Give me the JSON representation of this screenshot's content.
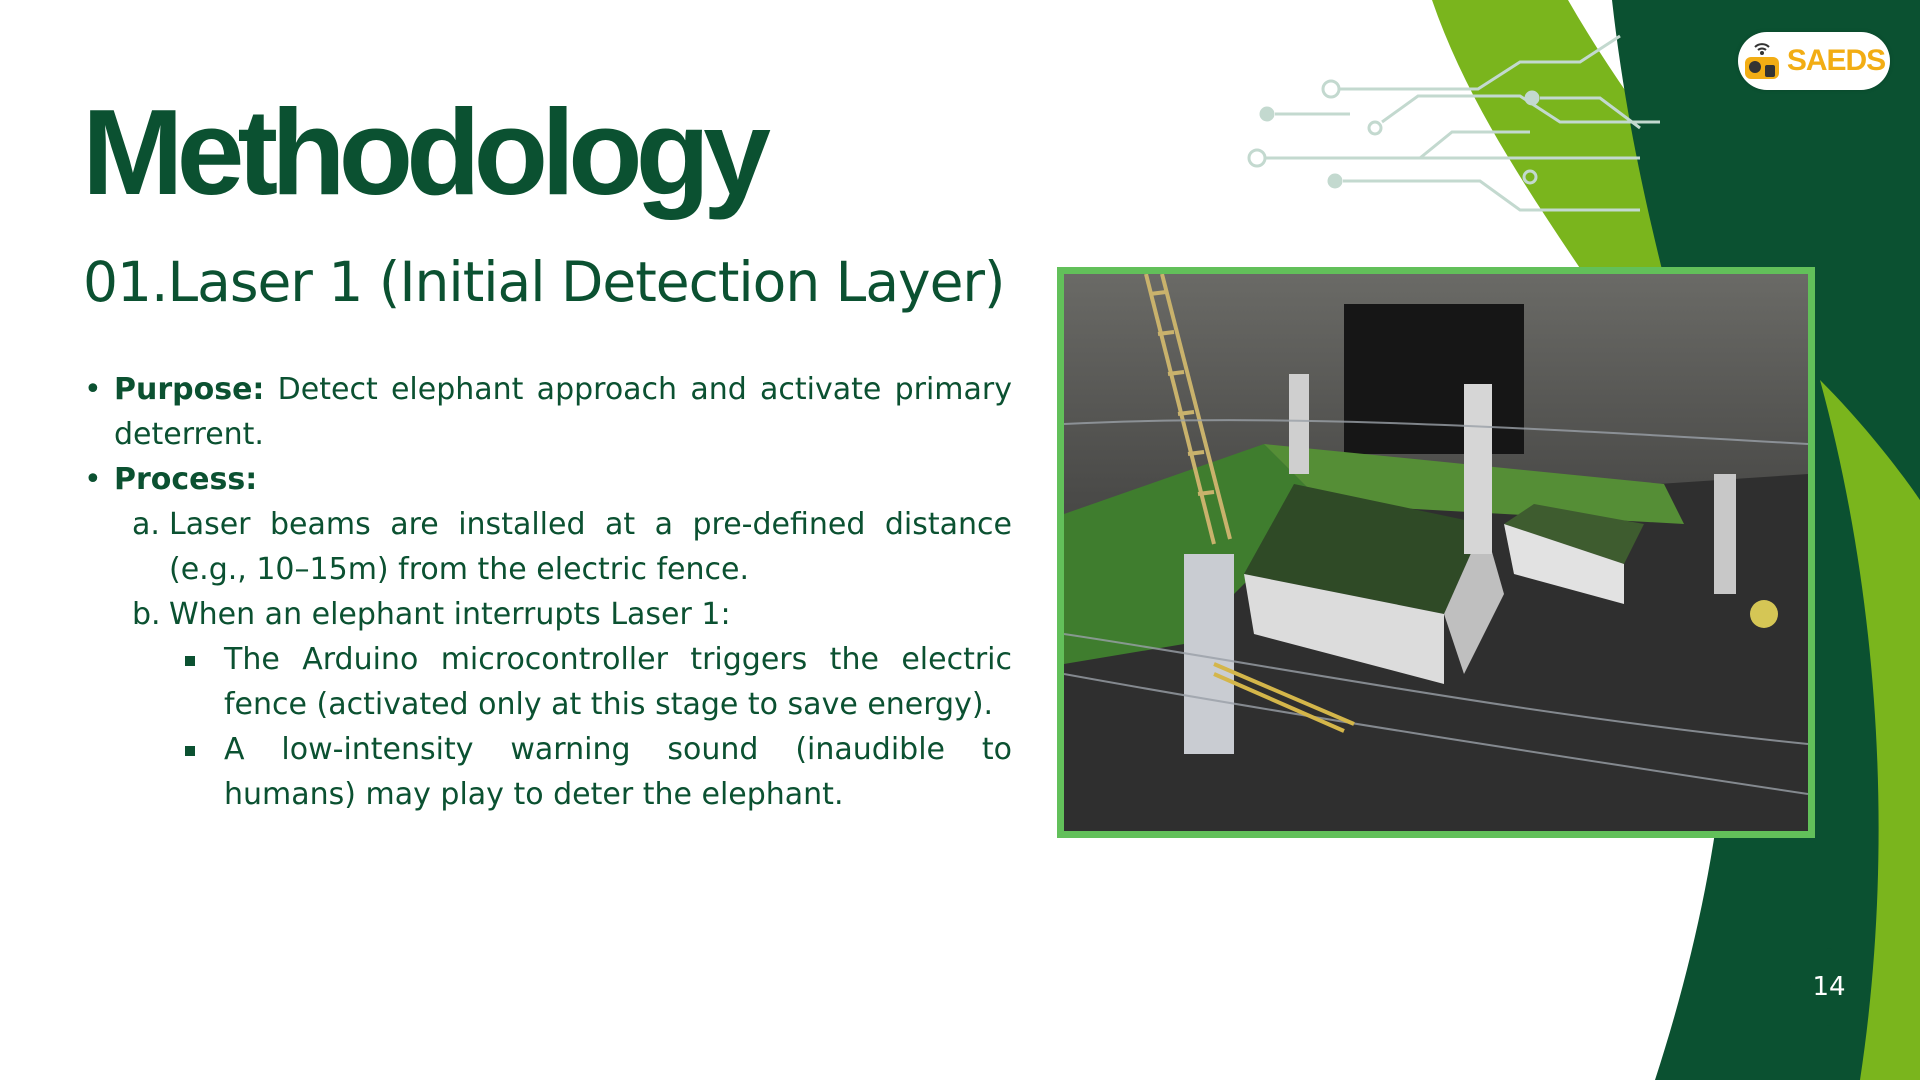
{
  "slide": {
    "title": "Methodology",
    "subtitle": "01.Laser 1 (Initial Detection Layer)",
    "page_number": "14",
    "logo_text": "SAEDS",
    "logo_icon": "elephant-wifi-icon",
    "colors": {
      "dark_green": "#0b5131",
      "lime_green": "#7ab51d",
      "photo_border": "#62c05a",
      "logo_yellow": "#f2ad14"
    }
  },
  "content": {
    "bullet_symbol": "•",
    "square_bullet": "square",
    "purpose_label": "Purpose:",
    "purpose_text": " Detect elephant approach and activate primary deterrent.",
    "process_label": "Process:",
    "item_a_marker": "a.",
    "item_a_text": "Laser beams are installed at a pre-defined distance (e.g., 10–15m) from the electric fence.",
    "item_b_marker": "b.",
    "item_b_text": "When an elephant interrupts Laser 1:",
    "sub_1": "The Arduino microcontroller triggers the electric fence (activated only at this stage to save energy).",
    "sub_2": "A low-intensity warning sound (inaudible to humans) may play to deter the elephant."
  },
  "image": {
    "subject": "elephant-fence-model-photo"
  }
}
